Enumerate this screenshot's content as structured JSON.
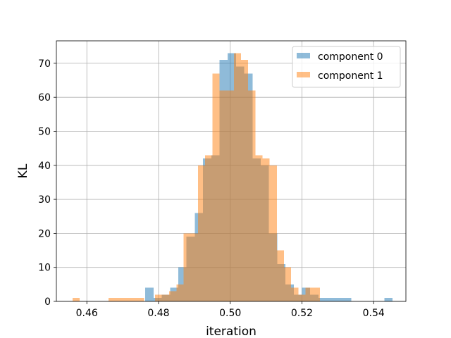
{
  "chart_data": {
    "type": "bar",
    "title": "",
    "xlabel": "iteration",
    "ylabel": "KL",
    "xlim": [
      0.4515,
      0.549
    ],
    "ylim": [
      0,
      76.6
    ],
    "xticks": [
      0.46,
      0.48,
      0.5,
      0.52,
      0.54
    ],
    "xtick_labels": [
      "0.46",
      "0.48",
      "0.50",
      "0.52",
      "0.54"
    ],
    "yticks": [
      0,
      10,
      20,
      30,
      40,
      50,
      60,
      70
    ],
    "ytick_labels": [
      "0",
      "10",
      "20",
      "30",
      "40",
      "50",
      "60",
      "70"
    ],
    "grid": true,
    "legend_position": "top-right",
    "series": [
      {
        "name": "component 0",
        "color": "#1f77b4",
        "alpha": 0.5,
        "bins": [
          [
            0.4763,
            0.4786,
            4
          ],
          [
            0.4786,
            0.4809,
            1
          ],
          [
            0.4809,
            0.4832,
            2
          ],
          [
            0.4832,
            0.4855,
            4
          ],
          [
            0.4855,
            0.4878,
            10
          ],
          [
            0.4878,
            0.4901,
            19
          ],
          [
            0.4901,
            0.4924,
            26
          ],
          [
            0.4924,
            0.4947,
            42
          ],
          [
            0.4947,
            0.497,
            43
          ],
          [
            0.497,
            0.4993,
            71
          ],
          [
            0.4993,
            0.5016,
            73
          ],
          [
            0.5016,
            0.5039,
            69
          ],
          [
            0.5039,
            0.5062,
            67
          ],
          [
            0.5062,
            0.5085,
            42
          ],
          [
            0.5085,
            0.5108,
            40
          ],
          [
            0.5108,
            0.5131,
            20
          ],
          [
            0.5131,
            0.5154,
            11
          ],
          [
            0.5154,
            0.5177,
            5
          ],
          [
            0.5177,
            0.52,
            2
          ],
          [
            0.52,
            0.5223,
            4
          ],
          [
            0.5223,
            0.5246,
            2
          ],
          [
            0.5246,
            0.5269,
            1
          ],
          [
            0.5269,
            0.5292,
            1
          ],
          [
            0.5292,
            0.5315,
            1
          ],
          [
            0.5315,
            0.5338,
            1
          ],
          [
            0.543,
            0.5453,
            1
          ]
        ]
      },
      {
        "name": "component 1",
        "color": "#ff7f0e",
        "alpha": 0.5,
        "bins": [
          [
            0.456,
            0.458,
            1
          ],
          [
            0.466,
            0.468,
            1
          ],
          [
            0.468,
            0.47,
            1
          ],
          [
            0.47,
            0.472,
            1
          ],
          [
            0.472,
            0.474,
            1
          ],
          [
            0.474,
            0.476,
            1
          ],
          [
            0.479,
            0.481,
            2
          ],
          [
            0.481,
            0.483,
            2
          ],
          [
            0.483,
            0.485,
            3
          ],
          [
            0.485,
            0.487,
            5
          ],
          [
            0.487,
            0.489,
            20
          ],
          [
            0.489,
            0.491,
            20
          ],
          [
            0.491,
            0.493,
            40
          ],
          [
            0.493,
            0.495,
            43
          ],
          [
            0.495,
            0.497,
            67
          ],
          [
            0.497,
            0.499,
            62
          ],
          [
            0.499,
            0.501,
            62
          ],
          [
            0.501,
            0.503,
            73
          ],
          [
            0.503,
            0.505,
            71
          ],
          [
            0.505,
            0.507,
            62
          ],
          [
            0.507,
            0.509,
            43
          ],
          [
            0.509,
            0.511,
            42
          ],
          [
            0.511,
            0.513,
            40
          ],
          [
            0.513,
            0.515,
            15
          ],
          [
            0.515,
            0.517,
            10
          ],
          [
            0.517,
            0.519,
            4
          ],
          [
            0.519,
            0.521,
            2
          ],
          [
            0.521,
            0.523,
            4
          ],
          [
            0.523,
            0.525,
            4
          ]
        ]
      }
    ]
  }
}
